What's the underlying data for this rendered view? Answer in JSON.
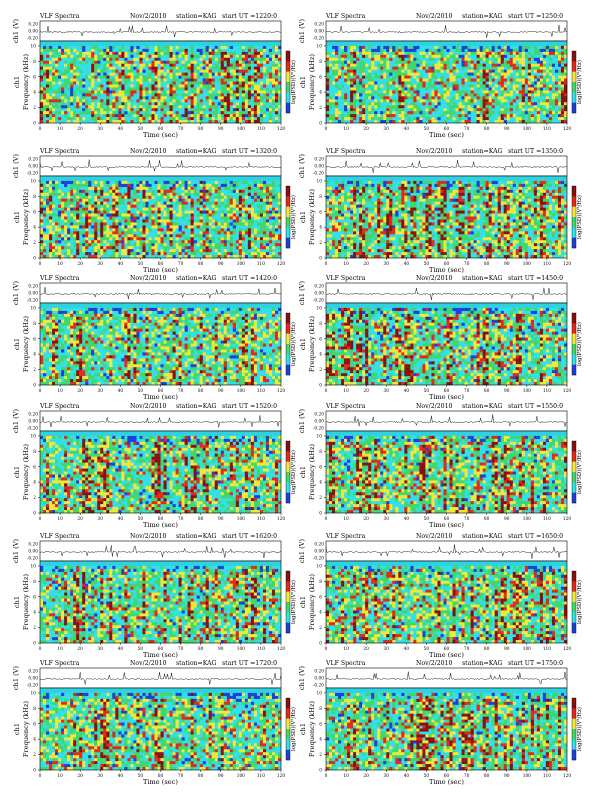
{
  "common": {
    "series_title": "VLF Spectra",
    "date": "Nov/2/2010",
    "station": "station=KAG",
    "start_prefix": "start  UT  =",
    "x_axis_label": "Time  (sec)",
    "wave_y_label": "ch1 (V)",
    "spec_y_label": "Frequency  (kHz)",
    "channel_label": "ch1",
    "colorbar_label": "log(PSD)(V²/Hz)",
    "wave_ticks": [
      "0.20",
      "0.00",
      "-0.20"
    ],
    "freq_ticks": [
      "0",
      "2",
      "4",
      "6",
      "8",
      "10"
    ],
    "time_ticks": [
      "0",
      "10",
      "20",
      "30",
      "40",
      "50",
      "60",
      "70",
      "80",
      "90",
      "100",
      "110",
      "120"
    ]
  },
  "colors": {
    "blue": "#1f3fd8",
    "cyan": "#33e0e8",
    "green": "#43d66a",
    "yellow": "#f2e83a",
    "red": "#e02a1a",
    "dark_red": "#8a1010",
    "top_band": "#2fd2e0"
  },
  "chart_data": [
    {
      "type": "heatmap",
      "start_ut": "1220:0",
      "x_range": [
        0,
        120
      ],
      "y_range": [
        0,
        10
      ]
    },
    {
      "type": "heatmap",
      "start_ut": "1250:0",
      "x_range": [
        0,
        120
      ],
      "y_range": [
        0,
        10
      ]
    },
    {
      "type": "heatmap",
      "start_ut": "1320:0",
      "x_range": [
        0,
        120
      ],
      "y_range": [
        0,
        10
      ]
    },
    {
      "type": "heatmap",
      "start_ut": "1350:0",
      "x_range": [
        0,
        120
      ],
      "y_range": [
        0,
        10
      ]
    },
    {
      "type": "heatmap",
      "start_ut": "1420:0",
      "x_range": [
        0,
        120
      ],
      "y_range": [
        0,
        10
      ]
    },
    {
      "type": "heatmap",
      "start_ut": "1450:0",
      "x_range": [
        0,
        120
      ],
      "y_range": [
        0,
        10
      ]
    },
    {
      "type": "heatmap",
      "start_ut": "1520:0",
      "x_range": [
        0,
        120
      ],
      "y_range": [
        0,
        10
      ]
    },
    {
      "type": "heatmap",
      "start_ut": "1550:0",
      "x_range": [
        0,
        120
      ],
      "y_range": [
        0,
        10
      ]
    },
    {
      "type": "heatmap",
      "start_ut": "1620:0",
      "x_range": [
        0,
        120
      ],
      "y_range": [
        0,
        10
      ]
    },
    {
      "type": "heatmap",
      "start_ut": "1650:0",
      "x_range": [
        0,
        120
      ],
      "y_range": [
        0,
        10
      ]
    },
    {
      "type": "heatmap",
      "start_ut": "1720:0",
      "x_range": [
        0,
        120
      ],
      "y_range": [
        0,
        10
      ]
    },
    {
      "type": "heatmap",
      "start_ut": "1750:0",
      "x_range": [
        0,
        120
      ],
      "y_range": [
        0,
        10
      ]
    }
  ]
}
